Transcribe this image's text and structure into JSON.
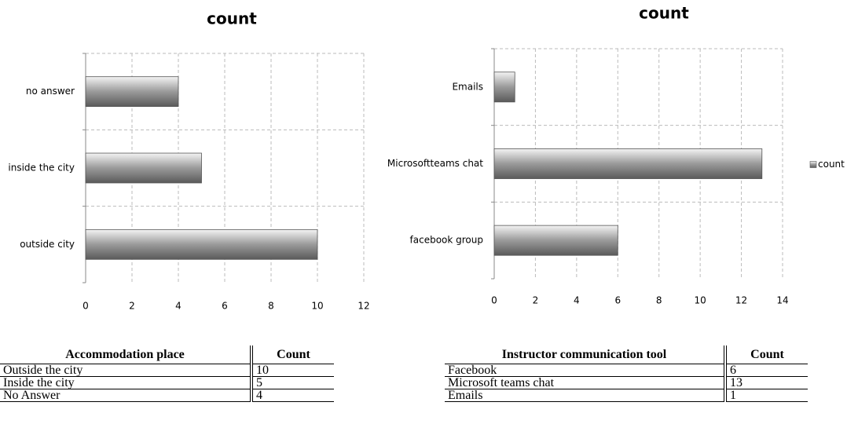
{
  "chart_data": [
    {
      "type": "bar",
      "orientation": "horizontal",
      "title": "count",
      "categories": [
        "outside city",
        "inside the city",
        "no answer"
      ],
      "values": [
        10,
        5,
        4
      ],
      "color": "#9a9a9a",
      "xlim": [
        0,
        12
      ],
      "xticks": [
        0,
        2,
        4,
        6,
        8,
        10,
        12
      ],
      "grid": true
    },
    {
      "type": "bar",
      "orientation": "horizontal",
      "title": "count",
      "categories": [
        "facebook group",
        "Microsoftteams chat",
        "Emails"
      ],
      "series": [
        {
          "name": "count",
          "color": "#9a9a9a",
          "values": [
            6,
            13,
            1
          ]
        }
      ],
      "xlim": [
        0,
        14
      ],
      "xticks": [
        0,
        2,
        4,
        6,
        8,
        10,
        12,
        14
      ],
      "grid": true,
      "legend": "right"
    }
  ],
  "tables": [
    {
      "columns": [
        "Accommodation place",
        "Count"
      ],
      "rows": [
        [
          "Outside the city",
          "10"
        ],
        [
          "Inside the city",
          "5"
        ],
        [
          "No Answer",
          "4"
        ]
      ]
    },
    {
      "columns": [
        "Instructor communication tool",
        "Count"
      ],
      "rows": [
        [
          "Facebook",
          "6"
        ],
        [
          "Microsoft teams chat",
          "13"
        ],
        [
          "Emails",
          "1"
        ]
      ]
    }
  ]
}
